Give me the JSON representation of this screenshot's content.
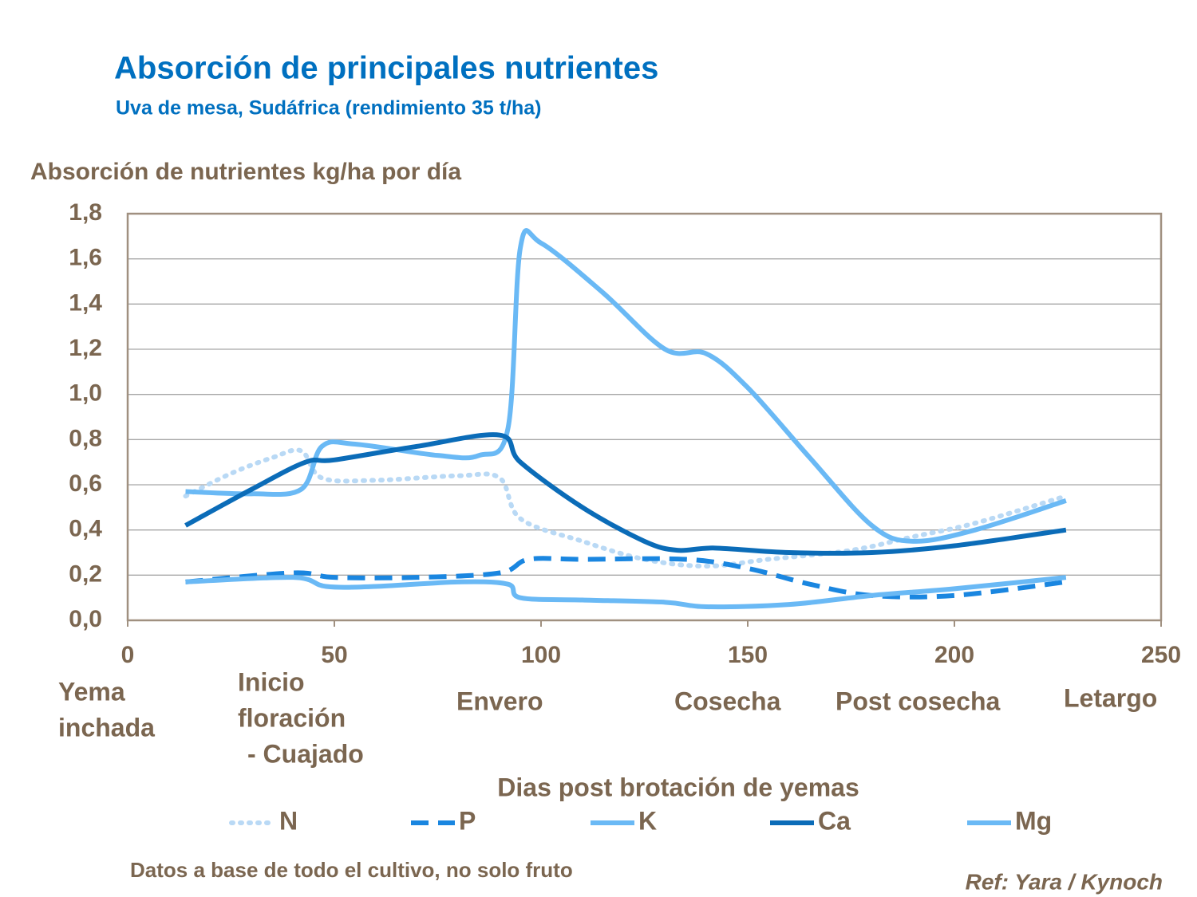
{
  "chart_data": {
    "type": "line",
    "title": "Absorción de principales nutrientes",
    "subtitle": "Uva de mesa, Sudáfrica (rendimiento 35 t/ha)",
    "y_label": "Absorción de nutrientes kg/ha por día",
    "x_label": "Dias post brotación de yemas",
    "stages": [
      [
        "Yema",
        "inchada"
      ],
      [
        "Inicio",
        "floración",
        "- Cuajado"
      ],
      [
        "Envero"
      ],
      [
        "Cosecha"
      ],
      [
        "Post cosecha"
      ],
      [
        "Letargo"
      ]
    ],
    "note": "Datos a base de todo el cultivo, no solo fruto",
    "reference": "Ref:  Yara / Kynoch",
    "xlim": [
      0,
      250
    ],
    "xticks": [
      0,
      50,
      100,
      150,
      200,
      250
    ],
    "ylim": [
      0,
      1.8
    ],
    "yticks": [
      {
        "value": 0,
        "label": "0,0"
      },
      {
        "value": 0.2,
        "label": "0,2"
      },
      {
        "value": 0.4,
        "label": "0,4"
      },
      {
        "value": 0.6,
        "label": "0,6"
      },
      {
        "value": 0.8,
        "label": "0,8"
      },
      {
        "value": 1.0,
        "label": "1,0"
      },
      {
        "value": 1.2,
        "label": "1,2"
      },
      {
        "value": 1.4,
        "label": "1,4"
      },
      {
        "value": 1.6,
        "label": "1,6"
      },
      {
        "value": 1.8,
        "label": "1,8"
      }
    ],
    "grid": true,
    "legend": "bottom",
    "series": [
      {
        "name": "N",
        "color": "#b9d9f5",
        "style": "dotted",
        "x": [
          14,
          25,
          35,
          42,
          47,
          60,
          80,
          90,
          95,
          110,
          125,
          140,
          155,
          175,
          190,
          205,
          227
        ],
        "values": [
          0.55,
          0.65,
          0.72,
          0.75,
          0.63,
          0.62,
          0.64,
          0.63,
          0.45,
          0.35,
          0.27,
          0.24,
          0.27,
          0.31,
          0.37,
          0.43,
          0.55
        ]
      },
      {
        "name": "P",
        "color": "#1a86e0",
        "style": "dashed",
        "x": [
          14,
          40,
          50,
          70,
          90,
          97,
          110,
          135,
          150,
          165,
          180,
          200,
          227
        ],
        "values": [
          0.17,
          0.21,
          0.19,
          0.19,
          0.21,
          0.27,
          0.27,
          0.27,
          0.23,
          0.16,
          0.11,
          0.11,
          0.17
        ]
      },
      {
        "name": "K",
        "color": "#6ab9f5",
        "style": "solid",
        "x": [
          14,
          30,
          42,
          47,
          55,
          75,
          85,
          92,
          95,
          100,
          115,
          130,
          140,
          150,
          165,
          180,
          190,
          205,
          227
        ],
        "values": [
          0.57,
          0.56,
          0.58,
          0.77,
          0.78,
          0.73,
          0.73,
          0.85,
          1.65,
          1.67,
          1.45,
          1.2,
          1.18,
          1.03,
          0.72,
          0.42,
          0.35,
          0.4,
          0.53
        ]
      },
      {
        "name": "Ca",
        "color": "#0b6cb8",
        "style": "solid",
        "x": [
          14,
          30,
          43,
          50,
          70,
          90,
          95,
          110,
          125,
          133,
          142,
          160,
          180,
          200,
          227
        ],
        "values": [
          0.42,
          0.58,
          0.7,
          0.71,
          0.77,
          0.82,
          0.7,
          0.5,
          0.35,
          0.31,
          0.32,
          0.3,
          0.3,
          0.33,
          0.4
        ]
      },
      {
        "name": "Mg",
        "color": "#6ab9f5",
        "style": "solid",
        "x": [
          14,
          40,
          48,
          60,
          80,
          92,
          95,
          110,
          130,
          140,
          160,
          180,
          200,
          227
        ],
        "values": [
          0.17,
          0.19,
          0.15,
          0.15,
          0.17,
          0.16,
          0.1,
          0.09,
          0.08,
          0.06,
          0.07,
          0.11,
          0.14,
          0.19
        ]
      }
    ]
  }
}
